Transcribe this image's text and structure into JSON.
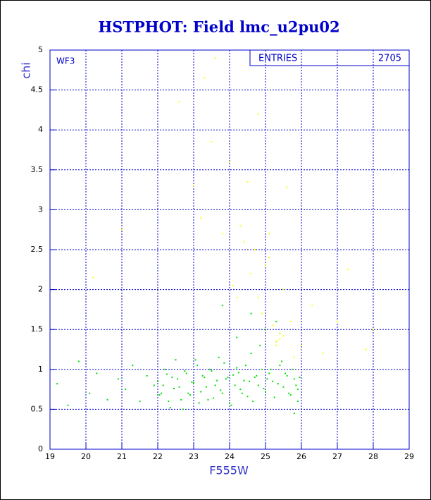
{
  "chart_data": {
    "type": "scatter",
    "title": "HSTPHOT: Field lmc_u2pu02",
    "x_label": "F555W",
    "y_label": "chi",
    "annotation": "WF3",
    "stats": {
      "label": "ENTRIES",
      "value": 2705
    },
    "xlim": [
      19,
      29
    ],
    "ylim": [
      0,
      5
    ],
    "xticks": [
      19,
      20,
      21,
      22,
      23,
      24,
      25,
      26,
      27,
      28,
      29
    ],
    "yticks": [
      0,
      0.5,
      1,
      1.5,
      2,
      2.5,
      3,
      3.5,
      4,
      4.5,
      5
    ],
    "grid": true,
    "series": [
      {
        "color": "#00e000",
        "x": [
          19.2,
          19.5,
          19.8,
          20.1,
          20.3,
          20.6,
          20.9,
          21.1,
          21.3,
          21.5,
          21.7,
          21.9,
          22.0,
          22.1,
          22.2,
          22.3,
          22.4,
          22.5,
          22.6,
          22.7,
          22.8,
          22.9,
          23.0,
          23.1,
          23.2,
          23.3,
          23.4,
          23.5,
          23.6,
          23.7,
          23.8,
          23.9,
          24.0,
          24.1,
          24.2,
          24.3,
          24.4,
          24.5,
          24.6,
          24.7,
          24.8,
          24.9,
          25.0,
          25.1,
          25.2,
          25.3,
          25.4,
          25.5,
          25.6,
          25.7,
          25.8,
          25.9,
          25.95,
          25.85,
          25.75,
          25.65,
          25.55,
          25.45,
          25.35,
          25.25,
          25.15,
          25.05,
          24.95,
          24.85,
          24.75,
          24.65,
          24.55,
          24.45,
          24.35,
          24.25,
          24.15,
          24.05,
          23.95,
          23.85,
          23.75,
          23.65,
          23.55,
          23.45,
          23.35,
          23.25,
          23.15,
          23.05,
          22.95,
          22.85,
          22.75,
          22.65,
          22.55,
          22.45,
          22.35,
          22.25,
          22.15,
          22.05,
          25.9,
          25.8,
          25.4,
          25.3,
          25.0,
          24.6,
          24.2,
          23.8
        ],
        "y": [
          0.82,
          0.55,
          1.1,
          0.7,
          0.95,
          0.62,
          0.88,
          0.75,
          1.05,
          0.6,
          0.92,
          0.8,
          0.85,
          0.7,
          1.0,
          0.6,
          0.9,
          1.12,
          0.78,
          0.5,
          0.95,
          0.68,
          0.83,
          1.05,
          0.72,
          0.9,
          0.62,
          0.98,
          0.8,
          1.15,
          0.7,
          0.88,
          0.58,
          0.93,
          1.02,
          0.75,
          0.86,
          0.66,
          1.2,
          0.9,
          0.8,
          1.0,
          0.72,
          0.95,
          0.85,
          1.35,
          1.05,
          0.78,
          0.92,
          0.68,
          0.88,
          0.75,
          0.9,
          0.8,
          1.0,
          0.7,
          0.95,
          1.1,
          0.82,
          0.65,
          1.0,
          0.88,
          0.76,
          1.3,
          0.92,
          0.6,
          0.85,
          1.05,
          0.7,
          0.96,
          0.8,
          0.55,
          0.9,
          1.08,
          0.74,
          0.86,
          0.64,
          1.0,
          0.78,
          0.92,
          0.58,
          1.12,
          0.84,
          0.7,
          0.98,
          0.62,
          0.88,
          0.76,
          0.52,
          0.94,
          0.8,
          0.68,
          0.6,
          0.45,
          1.45,
          1.6,
          1.5,
          1.7,
          1.4,
          1.8
        ]
      },
      {
        "color": "#ffff00",
        "x": [
          22.6,
          23.0,
          23.3,
          23.5,
          23.6,
          23.8,
          24.0,
          24.2,
          24.4,
          24.5,
          24.6,
          24.7,
          24.8,
          24.9,
          25.0,
          25.1,
          25.2,
          25.3,
          25.4,
          25.5,
          25.6,
          25.7,
          25.8,
          26.0,
          26.3,
          26.6,
          27.0,
          27.3,
          27.8,
          24.3,
          24.8,
          25.1,
          25.4,
          25.5,
          25.3,
          24.1,
          23.2,
          21.0,
          20.2,
          28.0
        ],
        "y": [
          4.35,
          3.3,
          4.65,
          3.85,
          4.9,
          2.7,
          3.6,
          1.9,
          2.6,
          3.35,
          2.2,
          2.5,
          4.2,
          1.7,
          2.3,
          2.7,
          1.55,
          1.3,
          1.45,
          2.0,
          3.28,
          1.6,
          1.15,
          1.3,
          1.8,
          1.2,
          1.6,
          2.25,
          1.25,
          2.8,
          1.9,
          2.4,
          1.38,
          1.42,
          1.35,
          2.05,
          2.9,
          2.75,
          2.15,
          1.5
        ]
      }
    ]
  }
}
